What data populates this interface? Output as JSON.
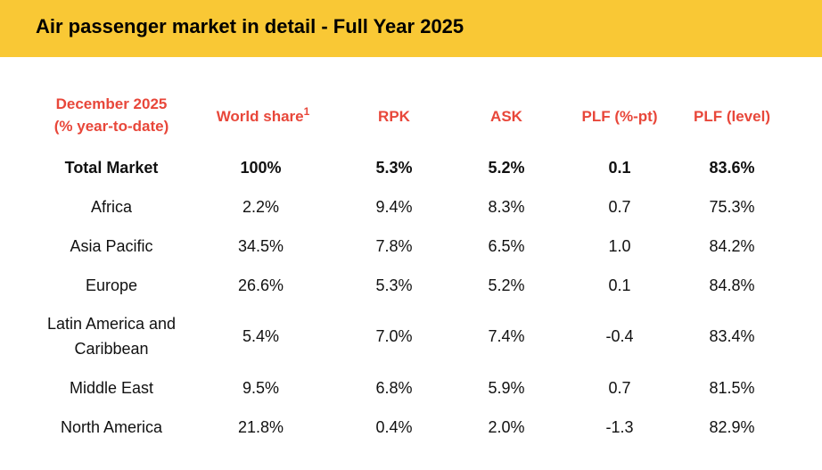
{
  "title": "Air passenger market in detail - Full Year 2025",
  "columns": {
    "period_line1": "December 2025",
    "period_line2": "(% year-to-date)",
    "world_share": "World share",
    "world_share_sup": "1",
    "rpk": "RPK",
    "ask": "ASK",
    "plf_pt": "PLF (%-pt)",
    "plf_level": "PLF (level)"
  },
  "rows": [
    {
      "region": "Total Market",
      "world_share": "100%",
      "rpk": "5.3%",
      "ask": "5.2%",
      "plf_pt": "0.1",
      "plf_level": "83.6%"
    },
    {
      "region": "Africa",
      "world_share": "2.2%",
      "rpk": "9.4%",
      "ask": "8.3%",
      "plf_pt": "0.7",
      "plf_level": "75.3%"
    },
    {
      "region": "Asia Pacific",
      "world_share": "34.5%",
      "rpk": "7.8%",
      "ask": "6.5%",
      "plf_pt": "1.0",
      "plf_level": "84.2%"
    },
    {
      "region": "Europe",
      "world_share": "26.6%",
      "rpk": "5.3%",
      "ask": "5.2%",
      "plf_pt": "0.1",
      "plf_level": "84.8%"
    },
    {
      "region": "Latin America and Caribbean",
      "world_share": "5.4%",
      "rpk": "7.0%",
      "ask": "7.4%",
      "plf_pt": "-0.4",
      "plf_level": "83.4%"
    },
    {
      "region": "Middle East",
      "world_share": "9.5%",
      "rpk": "6.8%",
      "ask": "5.9%",
      "plf_pt": "0.7",
      "plf_level": "81.5%"
    },
    {
      "region": "North America",
      "world_share": "21.8%",
      "rpk": "0.4%",
      "ask": "2.0%",
      "plf_pt": "-1.3",
      "plf_level": "82.9%"
    }
  ],
  "colors": {
    "header_band": "#f9c835",
    "column_header_text": "#e8473a"
  }
}
